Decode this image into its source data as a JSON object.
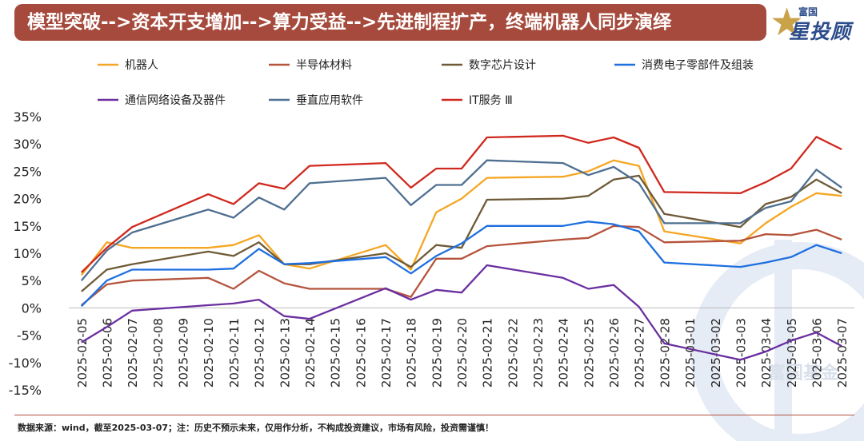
{
  "header": {
    "title": "模型突破-->资本开支增加-->算力受益-->先进制程扩产，终端机器人同步演绎",
    "logo_top": "富国",
    "logo_main": "星投顾",
    "watermark": "富国基金"
  },
  "footer": {
    "note": "数据来源：wind，截至2025-03-07；注：历史不预示未来，仅用作分析，不构成投资建议，市场有风险，投资需谨慎！"
  },
  "chart_data": {
    "type": "line",
    "title": "",
    "xlabel": "",
    "ylabel": "",
    "ylim": [
      -15,
      35
    ],
    "yticks": [
      "35%",
      "30%",
      "25%",
      "20%",
      "15%",
      "10%",
      "5%",
      "0%",
      "-5%",
      "-10%",
      "-15%"
    ],
    "grid": false,
    "legend_position": "top",
    "categories": [
      "2025-02-05",
      "2025-02-06",
      "2025-02-07",
      "2025-02-08",
      "2025-02-09",
      "2025-02-10",
      "2025-02-11",
      "2025-02-12",
      "2025-02-13",
      "2025-02-14",
      "2025-02-15",
      "2025-02-16",
      "2025-02-17",
      "2025-02-18",
      "2025-02-19",
      "2025-02-20",
      "2025-02-21",
      "2025-02-22",
      "2025-02-23",
      "2025-02-24",
      "2025-02-25",
      "2025-02-26",
      "2025-02-27",
      "2025-02-28",
      "2025-03-01",
      "2025-03-02",
      "2025-03-03",
      "2025-03-04",
      "2025-03-05",
      "2025-03-06",
      "2025-03-07"
    ],
    "series": [
      {
        "name": "机器人",
        "color": "#f5a623",
        "values": [
          6.0,
          12.0,
          11.0,
          null,
          null,
          11.0,
          11.5,
          13.3,
          8.0,
          7.2,
          null,
          null,
          11.5,
          7.0,
          17.5,
          20.0,
          23.8,
          null,
          null,
          24.0,
          25.0,
          27.0,
          26.0,
          14.0,
          null,
          null,
          11.8,
          15.5,
          18.5,
          21.0,
          20.5
        ]
      },
      {
        "name": "半导体材料",
        "color": "#b5533c",
        "values": [
          0.5,
          4.3,
          5.0,
          null,
          null,
          5.5,
          3.5,
          6.8,
          4.5,
          3.5,
          null,
          null,
          3.5,
          2.0,
          9.0,
          9.0,
          11.3,
          null,
          null,
          12.5,
          12.8,
          15.0,
          14.8,
          12.0,
          null,
          null,
          12.3,
          13.5,
          13.3,
          14.3,
          12.5
        ]
      },
      {
        "name": "数字芯片设计",
        "color": "#6e5a37",
        "values": [
          3.0,
          7.0,
          8.0,
          null,
          null,
          10.3,
          9.5,
          12.0,
          8.0,
          8.0,
          null,
          null,
          10.0,
          7.5,
          11.5,
          11.0,
          19.8,
          null,
          null,
          20.0,
          20.5,
          23.5,
          24.2,
          17.2,
          null,
          null,
          14.8,
          19.0,
          20.3,
          23.5,
          21.0
        ]
      },
      {
        "name": "消费电子零部件及组装",
        "color": "#1e6fe0",
        "values": [
          0.3,
          5.0,
          7.0,
          null,
          null,
          7.0,
          7.2,
          10.8,
          8.0,
          8.2,
          null,
          null,
          9.3,
          6.3,
          9.5,
          11.8,
          15.0,
          null,
          null,
          15.0,
          15.8,
          15.3,
          14.0,
          8.3,
          null,
          null,
          7.5,
          8.3,
          9.3,
          11.5,
          10.0
        ]
      },
      {
        "name": "通信网络设备及器件",
        "color": "#6a2fa0",
        "values": [
          -6.3,
          -3.5,
          -0.5,
          null,
          null,
          0.5,
          0.8,
          1.5,
          -1.5,
          -2.0,
          null,
          null,
          3.6,
          1.5,
          3.3,
          2.8,
          7.8,
          null,
          null,
          5.5,
          3.5,
          4.2,
          0.2,
          -6.5,
          null,
          null,
          -9.5,
          -8.0,
          -6.0,
          -4.5,
          -7.0
        ]
      },
      {
        "name": "垂直应用软件",
        "color": "#4e6f90",
        "values": [
          5.0,
          10.5,
          13.8,
          null,
          null,
          18.0,
          16.5,
          20.2,
          18.0,
          22.8,
          null,
          null,
          23.8,
          18.8,
          22.5,
          22.5,
          27.0,
          null,
          null,
          26.5,
          24.3,
          25.8,
          22.8,
          15.5,
          null,
          null,
          15.5,
          18.3,
          19.5,
          25.3,
          22.0
        ]
      },
      {
        "name": "IT服务 Ⅲ",
        "color": "#d0281e",
        "values": [
          6.5,
          11.0,
          14.8,
          null,
          null,
          20.8,
          19.0,
          22.8,
          21.8,
          26.0,
          null,
          null,
          26.5,
          22.0,
          25.5,
          25.5,
          31.2,
          null,
          null,
          31.5,
          30.2,
          31.2,
          29.3,
          21.2,
          null,
          null,
          21.0,
          23.0,
          25.5,
          31.3,
          29.0
        ]
      }
    ]
  }
}
